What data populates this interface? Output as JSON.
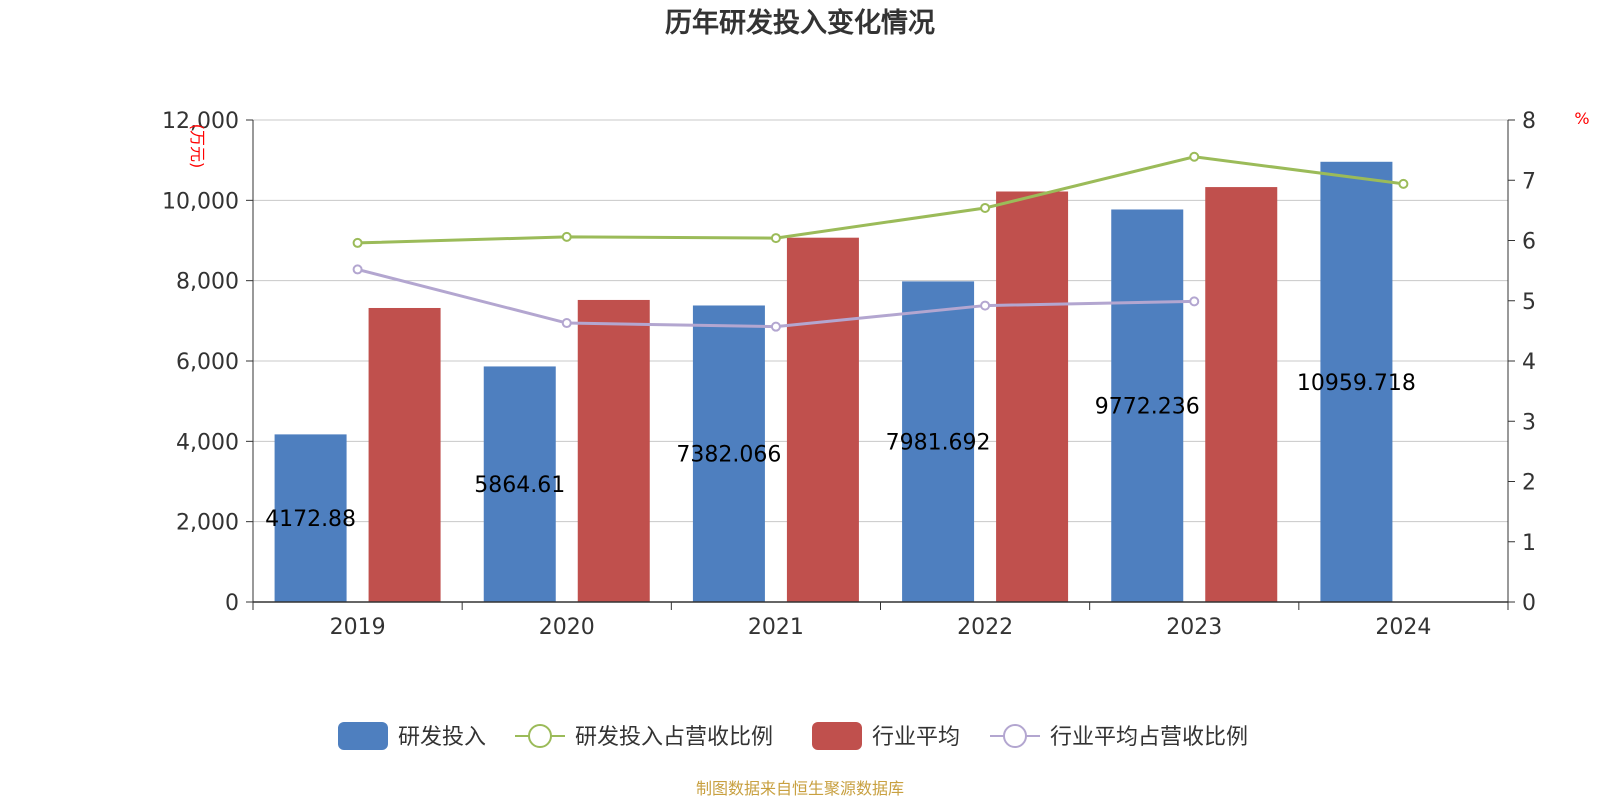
{
  "chart_data": {
    "type": "bar",
    "title": "历年研发投入变化情况",
    "categories": [
      "2019",
      "2020",
      "2021",
      "2022",
      "2023",
      "2024"
    ],
    "y_left": {
      "label": "(万元)",
      "ticks": [
        "0",
        "2,000",
        "4,000",
        "6,000",
        "8,000",
        "10,000",
        "12,000"
      ],
      "ylim": [
        0,
        12000
      ]
    },
    "y_right": {
      "label": "%",
      "ticks": [
        "0",
        "1",
        "2",
        "3",
        "4",
        "5",
        "6",
        "7",
        "8"
      ],
      "ylim": [
        0,
        8
      ]
    },
    "series": [
      {
        "name": "研发投入",
        "kind": "bar",
        "axis": "left",
        "color": "#4e7fbf",
        "values": [
          4172.88,
          5864.61,
          7382.066,
          7981.692,
          9772.236,
          10959.718
        ],
        "labels": [
          "4172.88",
          "5864.61",
          "7382.066",
          "7981.692",
          "9772.236",
          "10959.718"
        ]
      },
      {
        "name": "研发投入占营收比例",
        "kind": "line",
        "axis": "right",
        "color": "#9bbb59",
        "values": [
          5.96,
          6.06,
          6.04,
          6.54,
          7.39,
          6.94
        ]
      },
      {
        "name": "行业平均",
        "kind": "bar",
        "axis": "left",
        "color": "#c0504d",
        "values": [
          7320,
          7520,
          9070,
          10220,
          10330,
          null
        ]
      },
      {
        "name": "行业平均占营收比例",
        "kind": "line",
        "axis": "right",
        "color": "#b3a6d0",
        "values": [
          5.52,
          4.63,
          4.57,
          4.92,
          4.99,
          null
        ]
      }
    ],
    "legend_position": "bottom",
    "grid": true
  },
  "source": "制图数据来自恒生聚源数据库"
}
